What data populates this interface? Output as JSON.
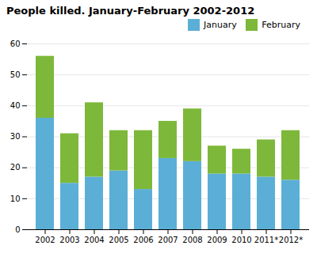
{
  "chart_data": {
    "type": "bar",
    "stacked": true,
    "title": "People killed. January-February 2002-2012",
    "categories": [
      "2002",
      "2003",
      "2004",
      "2005",
      "2006",
      "2007",
      "2008",
      "2009",
      "2010",
      "2011*",
      "2012*"
    ],
    "series": [
      {
        "name": "January",
        "color": "#5bafd6",
        "values": [
          36,
          15,
          17,
          19,
          13,
          23,
          22,
          18,
          18,
          17,
          16
        ]
      },
      {
        "name": "February",
        "color": "#7db83a",
        "values": [
          20,
          16,
          24,
          13,
          19,
          12,
          17,
          9,
          8,
          12,
          16
        ]
      }
    ],
    "ylim": [
      0,
      60
    ],
    "yticks": [
      0,
      10,
      20,
      30,
      40,
      50,
      60
    ],
    "grid": true,
    "legend": "upper right"
  }
}
